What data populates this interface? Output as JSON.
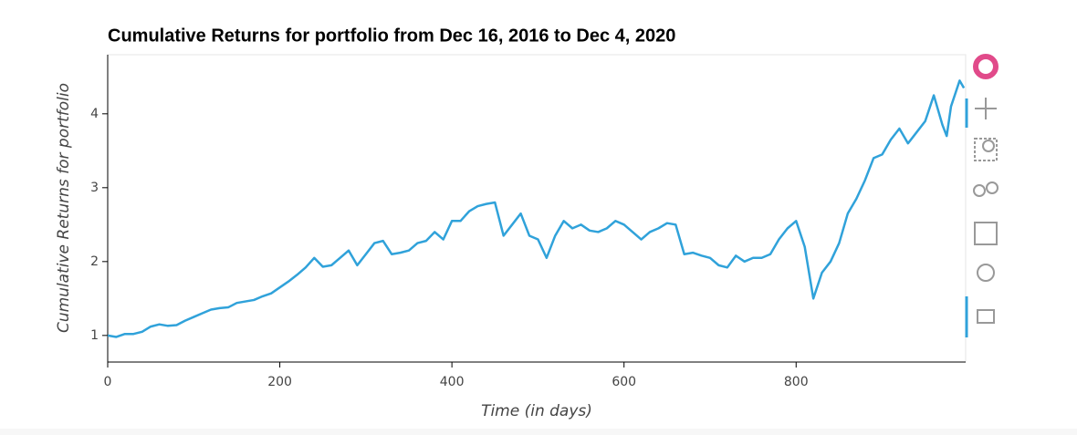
{
  "chart_data": {
    "type": "line",
    "title": "Cumulative Returns for portfolio from Dec 16, 2016 to Dec 4, 2020",
    "x_label": "Time (in days)",
    "y_label": "Cumulative Returns for portfolio",
    "x": [
      0,
      10,
      20,
      30,
      40,
      50,
      60,
      70,
      80,
      90,
      100,
      110,
      120,
      130,
      140,
      150,
      160,
      170,
      180,
      190,
      200,
      210,
      220,
      230,
      240,
      250,
      260,
      270,
      280,
      290,
      300,
      310,
      320,
      330,
      340,
      350,
      360,
      370,
      380,
      390,
      400,
      410,
      420,
      430,
      440,
      450,
      460,
      470,
      480,
      490,
      500,
      510,
      520,
      530,
      540,
      550,
      560,
      570,
      580,
      590,
      600,
      610,
      620,
      630,
      640,
      650,
      660,
      670,
      680,
      690,
      700,
      710,
      720,
      730,
      740,
      750,
      760,
      770,
      780,
      790,
      800,
      810,
      815,
      820,
      830,
      840,
      850,
      860,
      870,
      880,
      890,
      900,
      910,
      920,
      930,
      940,
      950,
      960,
      970,
      975,
      980,
      990,
      995
    ],
    "series": [
      {
        "name": "portfolio",
        "color": "#30a2da",
        "values": [
          1.0,
          0.98,
          1.02,
          1.02,
          1.05,
          1.12,
          1.15,
          1.13,
          1.14,
          1.2,
          1.25,
          1.3,
          1.35,
          1.37,
          1.38,
          1.44,
          1.46,
          1.48,
          1.53,
          1.57,
          1.65,
          1.73,
          1.82,
          1.92,
          2.05,
          1.93,
          1.95,
          2.05,
          2.15,
          1.95,
          2.1,
          2.25,
          2.28,
          2.1,
          2.12,
          2.15,
          2.25,
          2.28,
          2.4,
          2.3,
          2.55,
          2.55,
          2.68,
          2.75,
          2.78,
          2.8,
          2.35,
          2.5,
          2.65,
          2.35,
          2.3,
          2.05,
          2.35,
          2.55,
          2.45,
          2.5,
          2.42,
          2.4,
          2.45,
          2.55,
          2.5,
          2.4,
          2.3,
          2.4,
          2.45,
          2.52,
          2.5,
          2.1,
          2.12,
          2.08,
          2.05,
          1.95,
          1.92,
          2.08,
          2.0,
          2.05,
          2.05,
          2.1,
          2.3,
          2.45,
          2.55,
          2.2,
          1.85,
          1.5,
          1.85,
          2.0,
          2.25,
          2.65,
          2.85,
          3.1,
          3.4,
          3.45,
          3.65,
          3.8,
          3.6,
          3.75,
          3.9,
          4.25,
          3.85,
          3.7,
          4.1,
          4.45,
          4.35
        ]
      }
    ],
    "xlim": [
      0,
      997
    ],
    "xticks": [
      0,
      200,
      400,
      600,
      800
    ],
    "ylim": [
      0.64,
      4.8
    ],
    "yticks": [
      1,
      2,
      3,
      4
    ]
  }
}
